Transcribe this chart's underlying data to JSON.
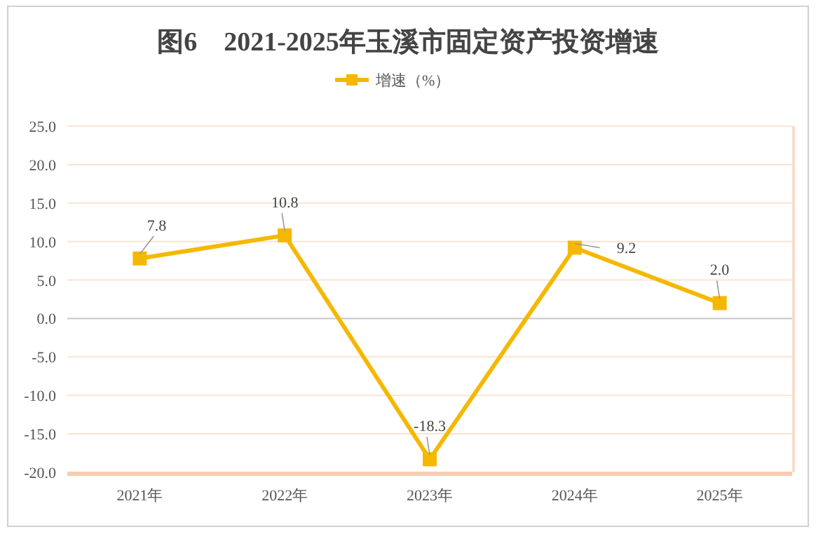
{
  "chart_data": {
    "type": "line",
    "title": "图6　2021-2025年玉溪市固定资产投资增速",
    "categories": [
      "2021年",
      "2022年",
      "2023年",
      "2024年",
      "2025年"
    ],
    "series": [
      {
        "name": "增速（%）",
        "color": "#f5b800",
        "values": [
          7.8,
          10.8,
          -18.3,
          9.2,
          2.0
        ],
        "value_labels": [
          "7.8",
          "10.8",
          "-18.3",
          "9.2",
          "2.0"
        ]
      }
    ],
    "ylim": [
      -20,
      25
    ],
    "yticks": [
      {
        "value": -20,
        "label": "-20.0"
      },
      {
        "value": -15,
        "label": "-15.0"
      },
      {
        "value": -10,
        "label": "-10.0"
      },
      {
        "value": -5,
        "label": "-5.0"
      },
      {
        "value": 0,
        "label": "0.0"
      },
      {
        "value": 5,
        "label": "5.0"
      },
      {
        "value": 10,
        "label": "10.0"
      },
      {
        "value": 15,
        "label": "15.0"
      },
      {
        "value": 20,
        "label": "20.0"
      },
      {
        "value": 25,
        "label": "25.0"
      }
    ],
    "grid": "y",
    "legend": "top",
    "marker": "square",
    "line_style": "solid"
  }
}
